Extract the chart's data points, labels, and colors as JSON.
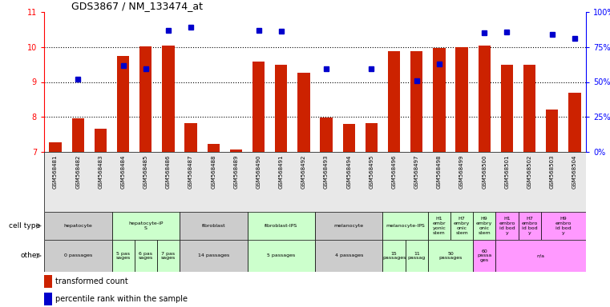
{
  "title": "GDS3867 / NM_133474_at",
  "samples": [
    "GSM568481",
    "GSM568482",
    "GSM568483",
    "GSM568484",
    "GSM568485",
    "GSM568486",
    "GSM568487",
    "GSM568488",
    "GSM568489",
    "GSM568490",
    "GSM568491",
    "GSM568492",
    "GSM568493",
    "GSM568494",
    "GSM568495",
    "GSM568496",
    "GSM568497",
    "GSM568498",
    "GSM568499",
    "GSM568500",
    "GSM568501",
    "GSM568502",
    "GSM568503",
    "GSM568504"
  ],
  "bar_values": [
    7.27,
    7.96,
    7.67,
    9.74,
    10.02,
    10.03,
    7.82,
    7.22,
    7.07,
    9.58,
    9.5,
    9.27,
    7.98,
    7.79,
    7.82,
    9.87,
    9.87,
    9.97,
    10.0,
    10.03,
    9.5,
    9.5,
    8.22,
    8.7
  ],
  "dot_values": [
    null,
    9.07,
    null,
    9.48,
    9.37,
    10.48,
    10.57,
    null,
    null,
    10.48,
    10.45,
    null,
    9.38,
    null,
    9.38,
    null,
    9.03,
    9.52,
    null,
    10.4,
    10.42,
    null,
    10.37,
    10.25
  ],
  "ylim": [
    7,
    11
  ],
  "yticks": [
    7,
    8,
    9,
    10,
    11
  ],
  "bar_color": "#CC2200",
  "dot_color": "#0000CC",
  "cell_type_groups": [
    {
      "label": "hepatocyte",
      "start": 0,
      "end": 3,
      "color": "#CCCCCC"
    },
    {
      "label": "hepatocyte-iP\nS",
      "start": 3,
      "end": 6,
      "color": "#CCFFCC"
    },
    {
      "label": "fibroblast",
      "start": 6,
      "end": 9,
      "color": "#CCCCCC"
    },
    {
      "label": "fibroblast-IPS",
      "start": 9,
      "end": 12,
      "color": "#CCFFCC"
    },
    {
      "label": "melanocyte",
      "start": 12,
      "end": 15,
      "color": "#CCCCCC"
    },
    {
      "label": "melanocyte-IPS",
      "start": 15,
      "end": 17,
      "color": "#CCFFCC"
    },
    {
      "label": "H1\nembr\nyonic\nstem",
      "start": 17,
      "end": 18,
      "color": "#CCFFCC"
    },
    {
      "label": "H7\nembry\nonic\nstem",
      "start": 18,
      "end": 19,
      "color": "#CCFFCC"
    },
    {
      "label": "H9\nembry\nonic\nstem",
      "start": 19,
      "end": 20,
      "color": "#CCFFCC"
    },
    {
      "label": "H1\nembro\nid bod\ny",
      "start": 20,
      "end": 21,
      "color": "#FF99FF"
    },
    {
      "label": "H7\nembro\nid bod\ny",
      "start": 21,
      "end": 22,
      "color": "#FF99FF"
    },
    {
      "label": "H9\nembro\nid bod\ny",
      "start": 22,
      "end": 24,
      "color": "#FF99FF"
    }
  ],
  "other_groups": [
    {
      "label": "0 passages",
      "start": 0,
      "end": 3,
      "color": "#CCCCCC"
    },
    {
      "label": "5 pas\nsages",
      "start": 3,
      "end": 4,
      "color": "#CCFFCC"
    },
    {
      "label": "6 pas\nsages",
      "start": 4,
      "end": 5,
      "color": "#CCFFCC"
    },
    {
      "label": "7 pas\nsages",
      "start": 5,
      "end": 6,
      "color": "#CCFFCC"
    },
    {
      "label": "14 passages",
      "start": 6,
      "end": 9,
      "color": "#CCCCCC"
    },
    {
      "label": "5 passages",
      "start": 9,
      "end": 12,
      "color": "#CCFFCC"
    },
    {
      "label": "4 passages",
      "start": 12,
      "end": 15,
      "color": "#CCCCCC"
    },
    {
      "label": "15\npassages",
      "start": 15,
      "end": 16,
      "color": "#CCFFCC"
    },
    {
      "label": "11\npassag",
      "start": 16,
      "end": 17,
      "color": "#CCFFCC"
    },
    {
      "label": "50\npassages",
      "start": 17,
      "end": 19,
      "color": "#CCFFCC"
    },
    {
      "label": "60\npassa\nges",
      "start": 19,
      "end": 20,
      "color": "#FF99FF"
    },
    {
      "label": "n/a",
      "start": 20,
      "end": 24,
      "color": "#FF99FF"
    }
  ]
}
